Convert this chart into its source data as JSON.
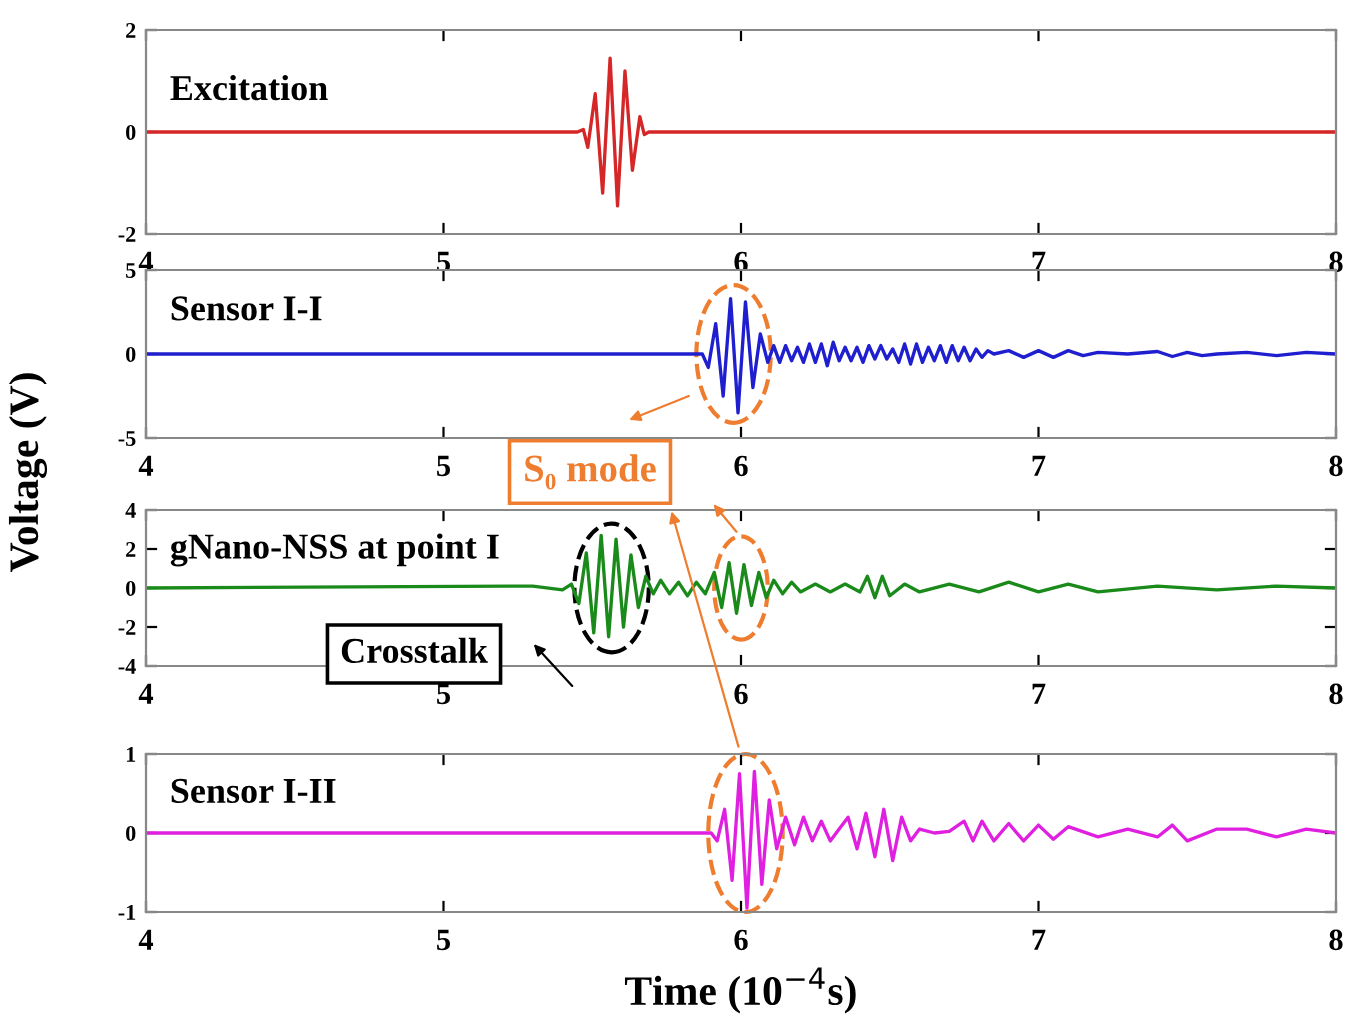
{
  "chart_data": [
    {
      "type": "line",
      "title": "Excitation",
      "xlim": [
        4,
        8
      ],
      "xticks": [
        4,
        5,
        6,
        7,
        8
      ],
      "ylim": [
        -2,
        2
      ],
      "yticks": [
        -2,
        0,
        2
      ],
      "grid": false,
      "legend": false,
      "series": [
        {
          "color": "#d62728",
          "x": [
            4,
            5.45,
            5.47,
            5.485,
            5.51,
            5.535,
            5.56,
            5.585,
            5.61,
            5.635,
            5.66,
            5.675,
            5.69,
            8
          ],
          "values": [
            0,
            0,
            0.05,
            -0.3,
            0.75,
            -1.2,
            1.45,
            -1.45,
            1.2,
            -0.75,
            0.3,
            -0.05,
            0,
            0
          ]
        }
      ]
    },
    {
      "type": "line",
      "title": "Sensor I-I",
      "ylabel": "Voltage (V)",
      "annotations": [
        "S₀ mode"
      ],
      "xlim": [
        4,
        8
      ],
      "xticks": [
        4,
        5,
        6,
        7,
        8
      ],
      "ylim": [
        -5,
        5
      ],
      "yticks": [
        -5,
        0,
        5
      ],
      "grid": false,
      "legend": false,
      "series": [
        {
          "color": "#1f1fd0",
          "x": [
            4,
            5.87,
            5.89,
            5.915,
            5.94,
            5.965,
            5.99,
            6.015,
            6.04,
            6.065,
            6.09,
            6.11,
            6.13,
            6.15,
            6.17,
            6.19,
            6.21,
            6.23,
            6.25,
            6.27,
            6.29,
            6.31,
            6.33,
            6.35,
            6.37,
            6.39,
            6.41,
            6.43,
            6.45,
            6.47,
            6.49,
            6.51,
            6.53,
            6.55,
            6.57,
            6.59,
            6.61,
            6.63,
            6.65,
            6.67,
            6.69,
            6.71,
            6.73,
            6.75,
            6.77,
            6.79,
            6.81,
            6.83,
            6.85,
            6.9,
            6.95,
            7.0,
            7.05,
            7.1,
            7.15,
            7.2,
            7.3,
            7.4,
            7.45,
            7.5,
            7.55,
            7.6,
            7.7,
            7.8,
            7.9,
            8
          ],
          "values": [
            0,
            0,
            -0.8,
            1.8,
            -2.5,
            3.3,
            -3.5,
            3.1,
            -2.0,
            1.2,
            -0.5,
            0.5,
            -0.5,
            0.5,
            -0.4,
            0.4,
            -0.5,
            0.6,
            -0.5,
            0.6,
            -0.7,
            0.7,
            -0.4,
            0.4,
            -0.4,
            0.4,
            -0.5,
            0.5,
            -0.3,
            0.5,
            -0.3,
            0.3,
            -0.5,
            0.6,
            -0.6,
            0.6,
            -0.5,
            0.4,
            -0.4,
            0.5,
            -0.5,
            0.5,
            -0.4,
            0.4,
            -0.4,
            0.3,
            -0.2,
            0.2,
            0,
            0.2,
            -0.2,
            0.2,
            -0.2,
            0.2,
            -0.1,
            0.1,
            0,
            0.15,
            -0.15,
            0.1,
            -0.1,
            0,
            0.1,
            -0.1,
            0.1,
            0
          ]
        }
      ]
    },
    {
      "type": "line",
      "title": "gNano-NSS at point I",
      "annotations": [
        "Crosstalk"
      ],
      "xlim": [
        4,
        8
      ],
      "xticks": [
        4,
        5,
        6,
        7,
        8
      ],
      "ylim": [
        -4,
        4
      ],
      "yticks": [
        -4,
        -2,
        0,
        2,
        4
      ],
      "grid": false,
      "legend": false,
      "series": [
        {
          "color": "#1a8a1a",
          "x": [
            4,
            5.3,
            5.4,
            5.43,
            5.455,
            5.48,
            5.505,
            5.53,
            5.555,
            5.58,
            5.605,
            5.63,
            5.655,
            5.68,
            5.705,
            5.73,
            5.76,
            5.79,
            5.82,
            5.85,
            5.88,
            5.91,
            5.935,
            5.96,
            5.985,
            6.01,
            6.035,
            6.06,
            6.085,
            6.11,
            6.14,
            6.17,
            6.2,
            6.25,
            6.3,
            6.35,
            6.4,
            6.425,
            6.45,
            6.475,
            6.5,
            6.55,
            6.6,
            6.7,
            6.8,
            6.9,
            7.0,
            7.1,
            7.2,
            7.4,
            7.6,
            7.8,
            8
          ],
          "values": [
            0,
            0.1,
            -0.1,
            0.2,
            -0.8,
            1.8,
            -2.3,
            2.7,
            -2.5,
            2.5,
            -2.0,
            1.7,
            -1.0,
            0.6,
            -0.3,
            0.4,
            -0.3,
            0.3,
            -0.4,
            0.3,
            -0.3,
            0.8,
            -1.0,
            1.3,
            -1.3,
            1.2,
            -0.9,
            0.8,
            -0.5,
            0.4,
            -0.3,
            0.3,
            -0.2,
            0.2,
            -0.2,
            0.2,
            -0.2,
            0.6,
            -0.5,
            0.6,
            -0.4,
            0.2,
            -0.2,
            0.2,
            -0.2,
            0.3,
            -0.2,
            0.2,
            -0.2,
            0.1,
            -0.1,
            0.1,
            0
          ]
        }
      ]
    },
    {
      "type": "line",
      "title": "Sensor I-II",
      "xlabel": "Time (10$^{−4}$s)",
      "xlim": [
        4,
        8
      ],
      "xticks": [
        4,
        5,
        6,
        7,
        8
      ],
      "ylim": [
        -1,
        1
      ],
      "yticks": [
        -1,
        0,
        1
      ],
      "grid": false,
      "legend": false,
      "series": [
        {
          "color": "#e020e0",
          "x": [
            4,
            5.9,
            5.92,
            5.945,
            5.97,
            5.995,
            6.02,
            6.045,
            6.07,
            6.095,
            6.12,
            6.15,
            6.18,
            6.21,
            6.24,
            6.27,
            6.3,
            6.33,
            6.36,
            6.39,
            6.42,
            6.45,
            6.48,
            6.51,
            6.54,
            6.57,
            6.6,
            6.65,
            6.7,
            6.75,
            6.78,
            6.81,
            6.85,
            6.9,
            6.95,
            7.0,
            7.05,
            7.1,
            7.2,
            7.3,
            7.4,
            7.45,
            7.5,
            7.6,
            7.7,
            7.8,
            7.9,
            8
          ],
          "values": [
            0,
            0,
            -0.1,
            0.3,
            -0.6,
            0.75,
            -0.95,
            0.78,
            -0.65,
            0.42,
            -0.2,
            0.2,
            -0.15,
            0.2,
            -0.1,
            0.15,
            -0.1,
            0.05,
            0.2,
            -0.2,
            0.25,
            -0.3,
            0.3,
            -0.35,
            0.2,
            -0.1,
            0.05,
            0,
            0.02,
            0.15,
            -0.1,
            0.15,
            -0.1,
            0.12,
            -0.1,
            0.1,
            -0.08,
            0.08,
            -0.05,
            0.05,
            -0.05,
            0.1,
            -0.1,
            0.05,
            0.05,
            -0.05,
            0.05,
            0
          ]
        }
      ]
    }
  ]
}
